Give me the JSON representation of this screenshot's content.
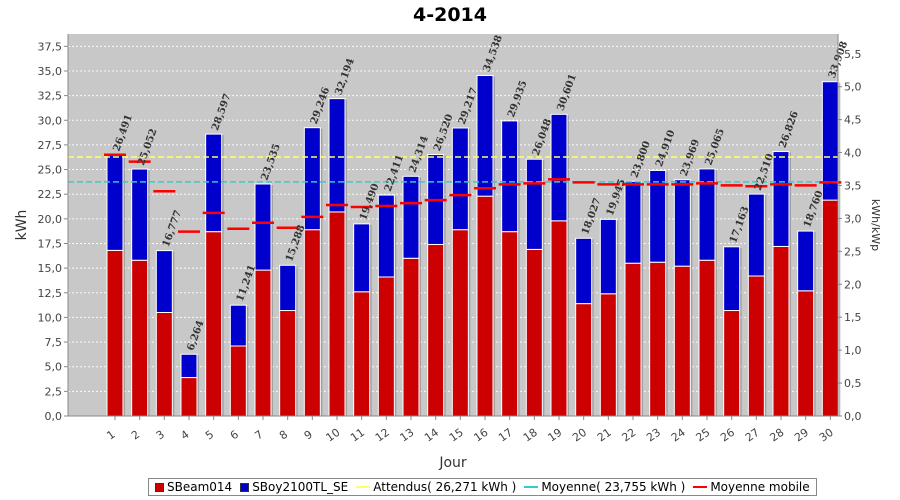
{
  "chart_data": {
    "type": "bar",
    "title": "4-2014",
    "xlabel": "Jour",
    "ylabel": "kWh",
    "y2label": "kWh/kWp",
    "ylim": [
      0,
      38.75
    ],
    "y2lim": [
      0,
      5.8
    ],
    "yticks": [
      "0,0",
      "2,5",
      "5,0",
      "7,5",
      "10,0",
      "12,5",
      "15,0",
      "17,5",
      "20,0",
      "22,5",
      "25,0",
      "27,5",
      "30,0",
      "32,5",
      "35,0",
      "37,5"
    ],
    "ytick_values": [
      0,
      2.5,
      5,
      7.5,
      10,
      12.5,
      15,
      17.5,
      20,
      22.5,
      25,
      27.5,
      30,
      32.5,
      35,
      37.5
    ],
    "y2ticks": [
      "0,0",
      "0,5",
      "1,0",
      "1,5",
      "2,0",
      "2,5",
      "3,0",
      "3,5",
      "4,0",
      "4,5",
      "5,0",
      "5,5"
    ],
    "y2tick_values": [
      0,
      0.5,
      1,
      1.5,
      2,
      2.5,
      3,
      3.5,
      4,
      4.5,
      5,
      5.5
    ],
    "categories": [
      "1",
      "2",
      "3",
      "4",
      "5",
      "6",
      "7",
      "8",
      "9",
      "10",
      "11",
      "12",
      "13",
      "14",
      "15",
      "16",
      "17",
      "18",
      "19",
      "20",
      "21",
      "22",
      "23",
      "24",
      "25",
      "26",
      "27",
      "28",
      "29",
      "30"
    ],
    "series": [
      {
        "name": "SBeam014",
        "color": "#cc0000",
        "values": [
          16.8,
          15.8,
          10.5,
          3.9,
          18.7,
          7.1,
          14.8,
          10.7,
          18.9,
          20.7,
          12.6,
          14.1,
          16.0,
          17.4,
          18.9,
          22.3,
          18.7,
          16.9,
          19.8,
          11.4,
          12.4,
          15.5,
          15.6,
          15.2,
          15.8,
          10.7,
          14.2,
          17.2,
          12.7,
          21.9
        ]
      },
      {
        "name": "SBoy2100TL_SE",
        "color": "#0000cc",
        "values": [
          9.691,
          9.252,
          6.277,
          2.364,
          9.897,
          4.141,
          8.735,
          4.588,
          10.346,
          11.494,
          6.89,
          8.311,
          8.314,
          9.12,
          10.317,
          12.238,
          11.235,
          9.148,
          10.801,
          6.627,
          7.545,
          8.3,
          9.31,
          8.769,
          9.265,
          6.463,
          8.31,
          9.626,
          6.06,
          12.008
        ]
      }
    ],
    "totals_labels": [
      "26,491",
      "25,052",
      "16,777",
      "6,264",
      "28,597",
      "11,241",
      "23,535",
      "15,288",
      "29,246",
      "32,194",
      "19,490",
      "22,411",
      "24,314",
      "26,520",
      "29,217",
      "34,538",
      "29,935",
      "26,048",
      "30,601",
      "18,027",
      "19,945",
      "23,800",
      "24,910",
      "23,969",
      "25,065",
      "17,163",
      "22,510",
      "26,826",
      "18,760",
      "33,908"
    ],
    "totals_values": [
      26.491,
      25.052,
      16.777,
      6.264,
      28.597,
      11.241,
      23.535,
      15.288,
      29.246,
      32.194,
      19.49,
      22.411,
      24.314,
      26.52,
      29.217,
      34.538,
      29.935,
      26.048,
      30.601,
      18.027,
      19.945,
      23.8,
      24.91,
      23.969,
      25.065,
      17.163,
      22.51,
      26.826,
      18.76,
      33.908
    ],
    "attendus": {
      "name": "Attendus( 26,271 kWh )",
      "value": 26.271,
      "color": "#ffff66"
    },
    "moyenne": {
      "name": "Moyenne( 23,755 kWh )",
      "value": 23.755,
      "color": "#33cccc"
    },
    "moyenne_mobile": {
      "name": "Moyenne mobile",
      "color": "#ff0000",
      "values": [
        26.5,
        25.8,
        22.8,
        18.7,
        20.6,
        19.0,
        19.6,
        19.1,
        20.2,
        21.4,
        21.2,
        21.3,
        21.6,
        21.9,
        22.4,
        23.1,
        23.5,
        23.6,
        24.0,
        23.7,
        23.5,
        23.5,
        23.5,
        23.5,
        23.6,
        23.4,
        23.3,
        23.5,
        23.4,
        23.7
      ]
    },
    "grid": true,
    "legend_position": "bottom"
  },
  "legend": {
    "items": [
      {
        "label": "SBeam014",
        "kind": "box",
        "color": "#cc0000"
      },
      {
        "label": "SBoy2100TL_SE",
        "kind": "box",
        "color": "#0000cc"
      },
      {
        "label": "Attendus( 26,271 kWh )",
        "kind": "line",
        "color": "#ffff66"
      },
      {
        "label": "Moyenne( 23,755 kWh )",
        "kind": "line",
        "color": "#33cccc"
      },
      {
        "label": "Moyenne mobile",
        "kind": "line",
        "color": "#ff0000"
      }
    ]
  }
}
